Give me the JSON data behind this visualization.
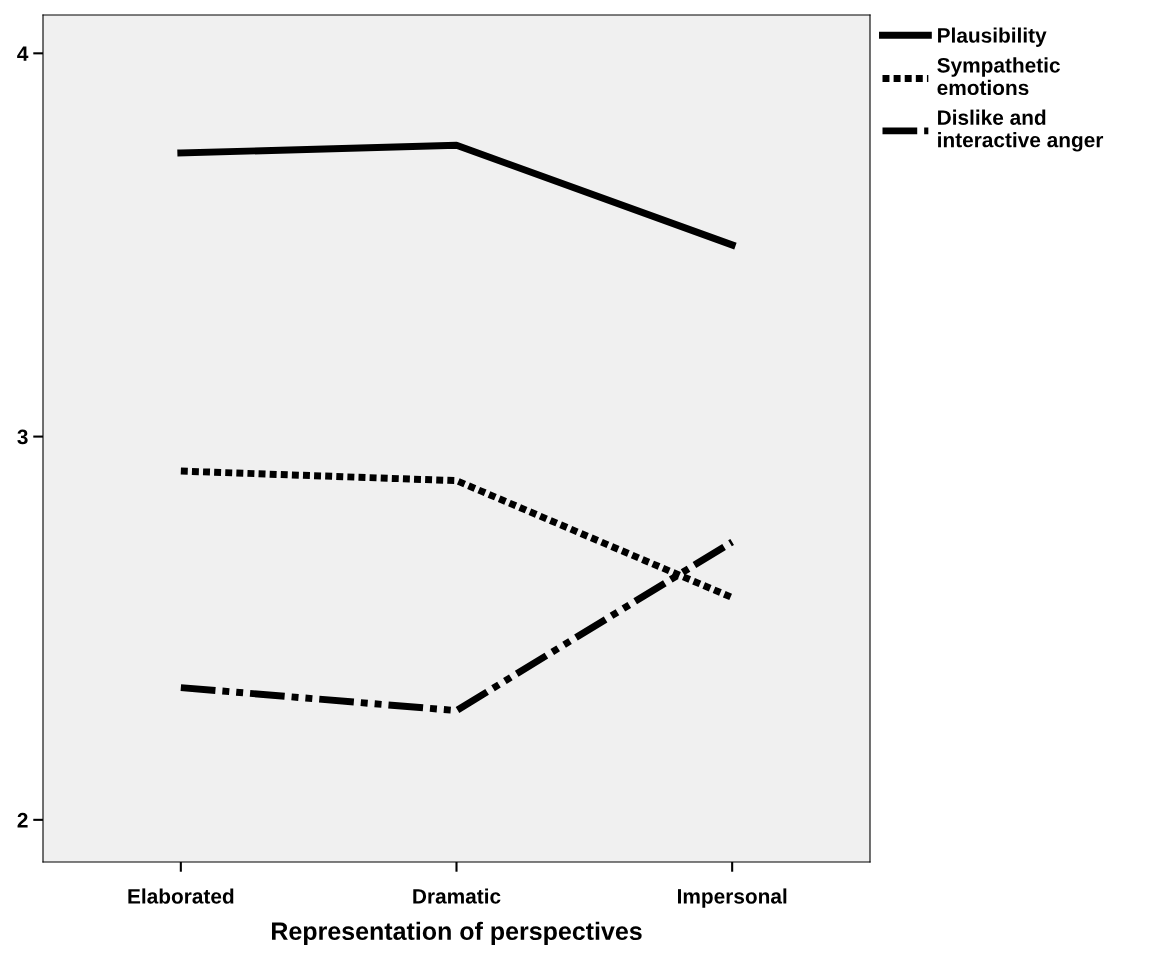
{
  "chart_data": {
    "type": "line",
    "xlabel": "Representation of perspectives",
    "categories": [
      "Elaborated",
      "Dramatic",
      "Impersonal"
    ],
    "series": [
      {
        "name": "Plausibility",
        "color": "#000000",
        "line_style": "solid",
        "values": [
          3.74,
          3.76,
          3.5
        ]
      },
      {
        "name": "Sympathetic\nemotions",
        "color": "#000000",
        "line_style": "dotted",
        "values": [
          2.91,
          2.885,
          2.58
        ]
      },
      {
        "name": "Dislike and\ninteractive anger",
        "color": "#000000",
        "line_style": "dashdotdot",
        "values": [
          2.345,
          2.285,
          2.725
        ]
      }
    ],
    "ylim": [
      1.89,
      4.1
    ],
    "yticks": [
      2,
      3,
      4
    ],
    "grid": false,
    "legend": "top right",
    "marker": "none"
  }
}
